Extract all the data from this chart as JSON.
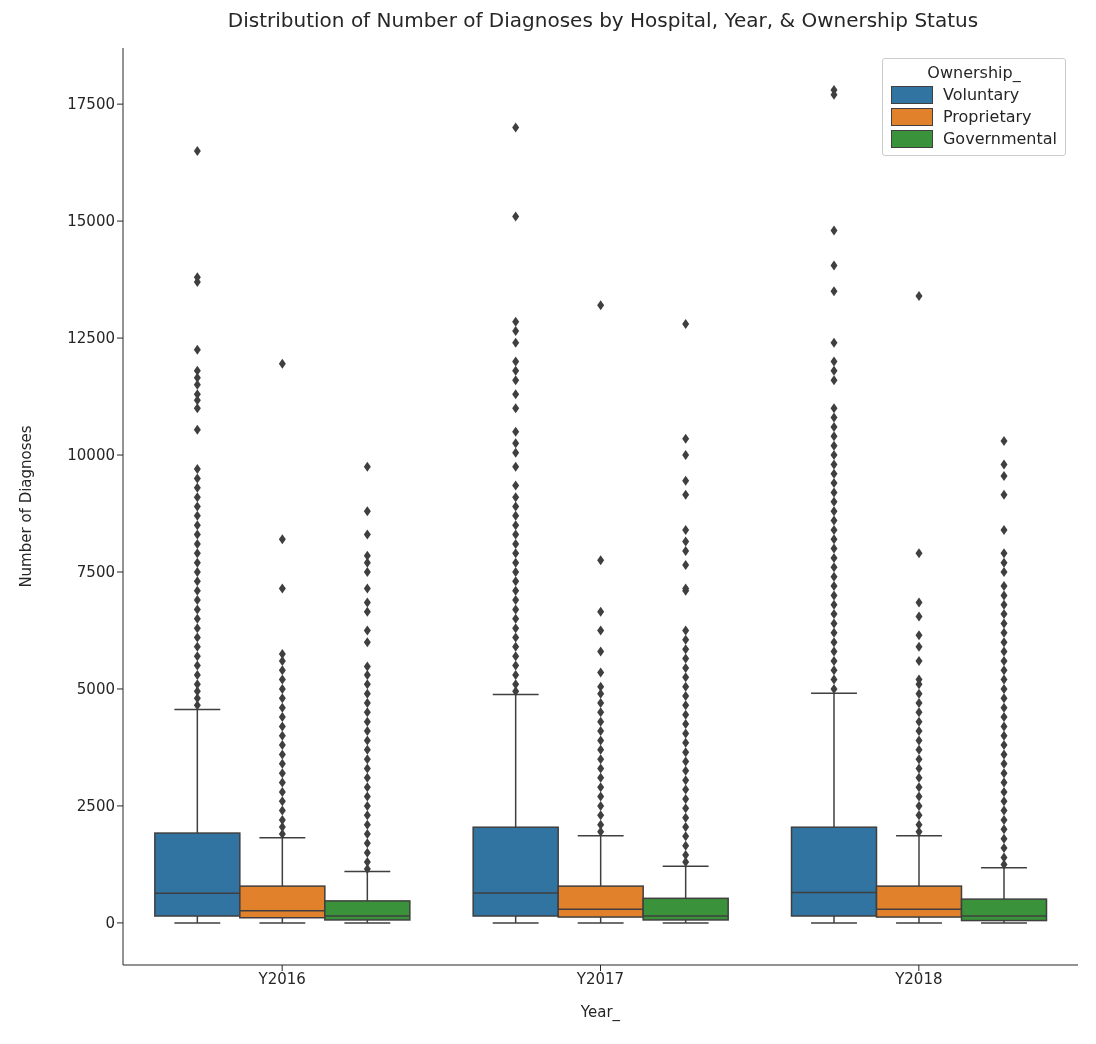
{
  "chart_data": {
    "type": "box",
    "title": "Distribution of Number of Diagnoses by Hospital, Year, & Ownership Status",
    "xlabel": "Year_",
    "ylabel": "Number of Diagnoses",
    "legend_title": "Ownership_",
    "legend": "top right",
    "marker": "diamond",
    "categories": [
      "Y2016",
      "Y2017",
      "Y2018"
    ],
    "ylim": [
      -900,
      18700
    ],
    "yticks": [
      0,
      2500,
      5000,
      7500,
      10000,
      12500,
      15000,
      17500
    ],
    "series": [
      {
        "name": "Voluntary",
        "color": "#3274a1",
        "boxes": [
          {
            "low": 0,
            "q1": 147,
            "median": 634,
            "q3": 1920,
            "high": 4560,
            "outliers": [
              4650,
              4800,
              4950,
              5100,
              5300,
              5500,
              5700,
              5900,
              6100,
              6300,
              6500,
              6700,
              6900,
              7100,
              7300,
              7500,
              7700,
              7900,
              8100,
              8300,
              8500,
              8700,
              8900,
              9100,
              9300,
              9500,
              9700,
              10540,
              11000,
              11170,
              11300,
              11500,
              11650,
              11800,
              12250,
              13700,
              13800,
              16500
            ]
          },
          {
            "low": 0,
            "q1": 147,
            "median": 640,
            "q3": 2045,
            "high": 4880,
            "outliers": [
              4950,
              5100,
              5300,
              5500,
              5700,
              5900,
              6100,
              6300,
              6500,
              6700,
              6900,
              7100,
              7300,
              7500,
              7700,
              7900,
              8100,
              8300,
              8500,
              8700,
              8900,
              9100,
              9350,
              9750,
              10050,
              10250,
              10500,
              11000,
              11300,
              11600,
              11800,
              12000,
              12400,
              12650,
              12850,
              15100,
              17000
            ]
          },
          {
            "low": 0,
            "q1": 147,
            "median": 650,
            "q3": 2045,
            "high": 4910,
            "outliers": [
              5000,
              5200,
              5400,
              5600,
              5800,
              6000,
              6200,
              6400,
              6600,
              6800,
              7000,
              7200,
              7400,
              7600,
              7800,
              8000,
              8200,
              8400,
              8600,
              8800,
              9000,
              9200,
              9400,
              9600,
              9800,
              10000,
              10200,
              10400,
              10600,
              10800,
              11000,
              11600,
              11800,
              12000,
              12400,
              13500,
              14050,
              14800,
              17700,
              17800
            ]
          }
        ]
      },
      {
        "name": "Proprietary",
        "color": "#e1812c",
        "boxes": [
          {
            "low": 0,
            "q1": 110,
            "median": 260,
            "q3": 786,
            "high": 1820,
            "outliers": [
              1900,
              2050,
              2200,
              2400,
              2600,
              2800,
              3000,
              3200,
              3400,
              3600,
              3800,
              4000,
              4200,
              4400,
              4600,
              4800,
              5000,
              5200,
              5400,
              5600,
              5750,
              7150,
              8200,
              11950
            ]
          },
          {
            "low": 0,
            "q1": 125,
            "median": 294,
            "q3": 786,
            "high": 1865,
            "outliers": [
              1950,
              2100,
              2300,
              2500,
              2700,
              2900,
              3100,
              3300,
              3500,
              3700,
              3900,
              4100,
              4300,
              4500,
              4700,
              4900,
              5050,
              5350,
              5800,
              6250,
              6650,
              7750,
              13200
            ]
          },
          {
            "low": 0,
            "q1": 125,
            "median": 294,
            "q3": 786,
            "high": 1865,
            "outliers": [
              1950,
              2100,
              2300,
              2500,
              2700,
              2900,
              3100,
              3300,
              3500,
              3700,
              3900,
              4100,
              4300,
              4500,
              4700,
              4900,
              5100,
              5200,
              5600,
              5900,
              6150,
              6550,
              6850,
              7900,
              13400
            ]
          }
        ]
      },
      {
        "name": "Governmental",
        "color": "#3a923a",
        "boxes": [
          {
            "low": 0,
            "q1": 63,
            "median": 147,
            "q3": 470,
            "high": 1100,
            "outliers": [
              1150,
              1300,
              1500,
              1700,
              1900,
              2100,
              2300,
              2500,
              2700,
              2900,
              3100,
              3300,
              3500,
              3700,
              3900,
              4100,
              4300,
              4500,
              4700,
              4900,
              5100,
              5300,
              5480,
              6000,
              6250,
              6650,
              6850,
              7150,
              7500,
              7700,
              7850,
              8300,
              8800,
              9750
            ]
          },
          {
            "low": 0,
            "q1": 63,
            "median": 147,
            "q3": 525,
            "high": 1210,
            "outliers": [
              1300,
              1450,
              1650,
              1850,
              2050,
              2250,
              2450,
              2650,
              2850,
              3050,
              3250,
              3450,
              3650,
              3850,
              4050,
              4250,
              4450,
              4650,
              4850,
              5050,
              5250,
              5450,
              5650,
              5850,
              6050,
              6250,
              7100,
              7150,
              7650,
              7950,
              8150,
              8400,
              9150,
              9450,
              10000,
              10350,
              12800
            ]
          },
          {
            "low": 0,
            "q1": 50,
            "median": 147,
            "q3": 508,
            "high": 1180,
            "outliers": [
              1250,
              1400,
              1600,
              1800,
              2000,
              2200,
              2400,
              2600,
              2800,
              3000,
              3200,
              3400,
              3600,
              3800,
              4000,
              4200,
              4400,
              4600,
              4800,
              5000,
              5200,
              5400,
              5600,
              5800,
              6000,
              6200,
              6400,
              6600,
              6800,
              7000,
              7200,
              7500,
              7700,
              7900,
              8400,
              9150,
              9550,
              9800,
              10300
            ]
          }
        ]
      }
    ]
  }
}
